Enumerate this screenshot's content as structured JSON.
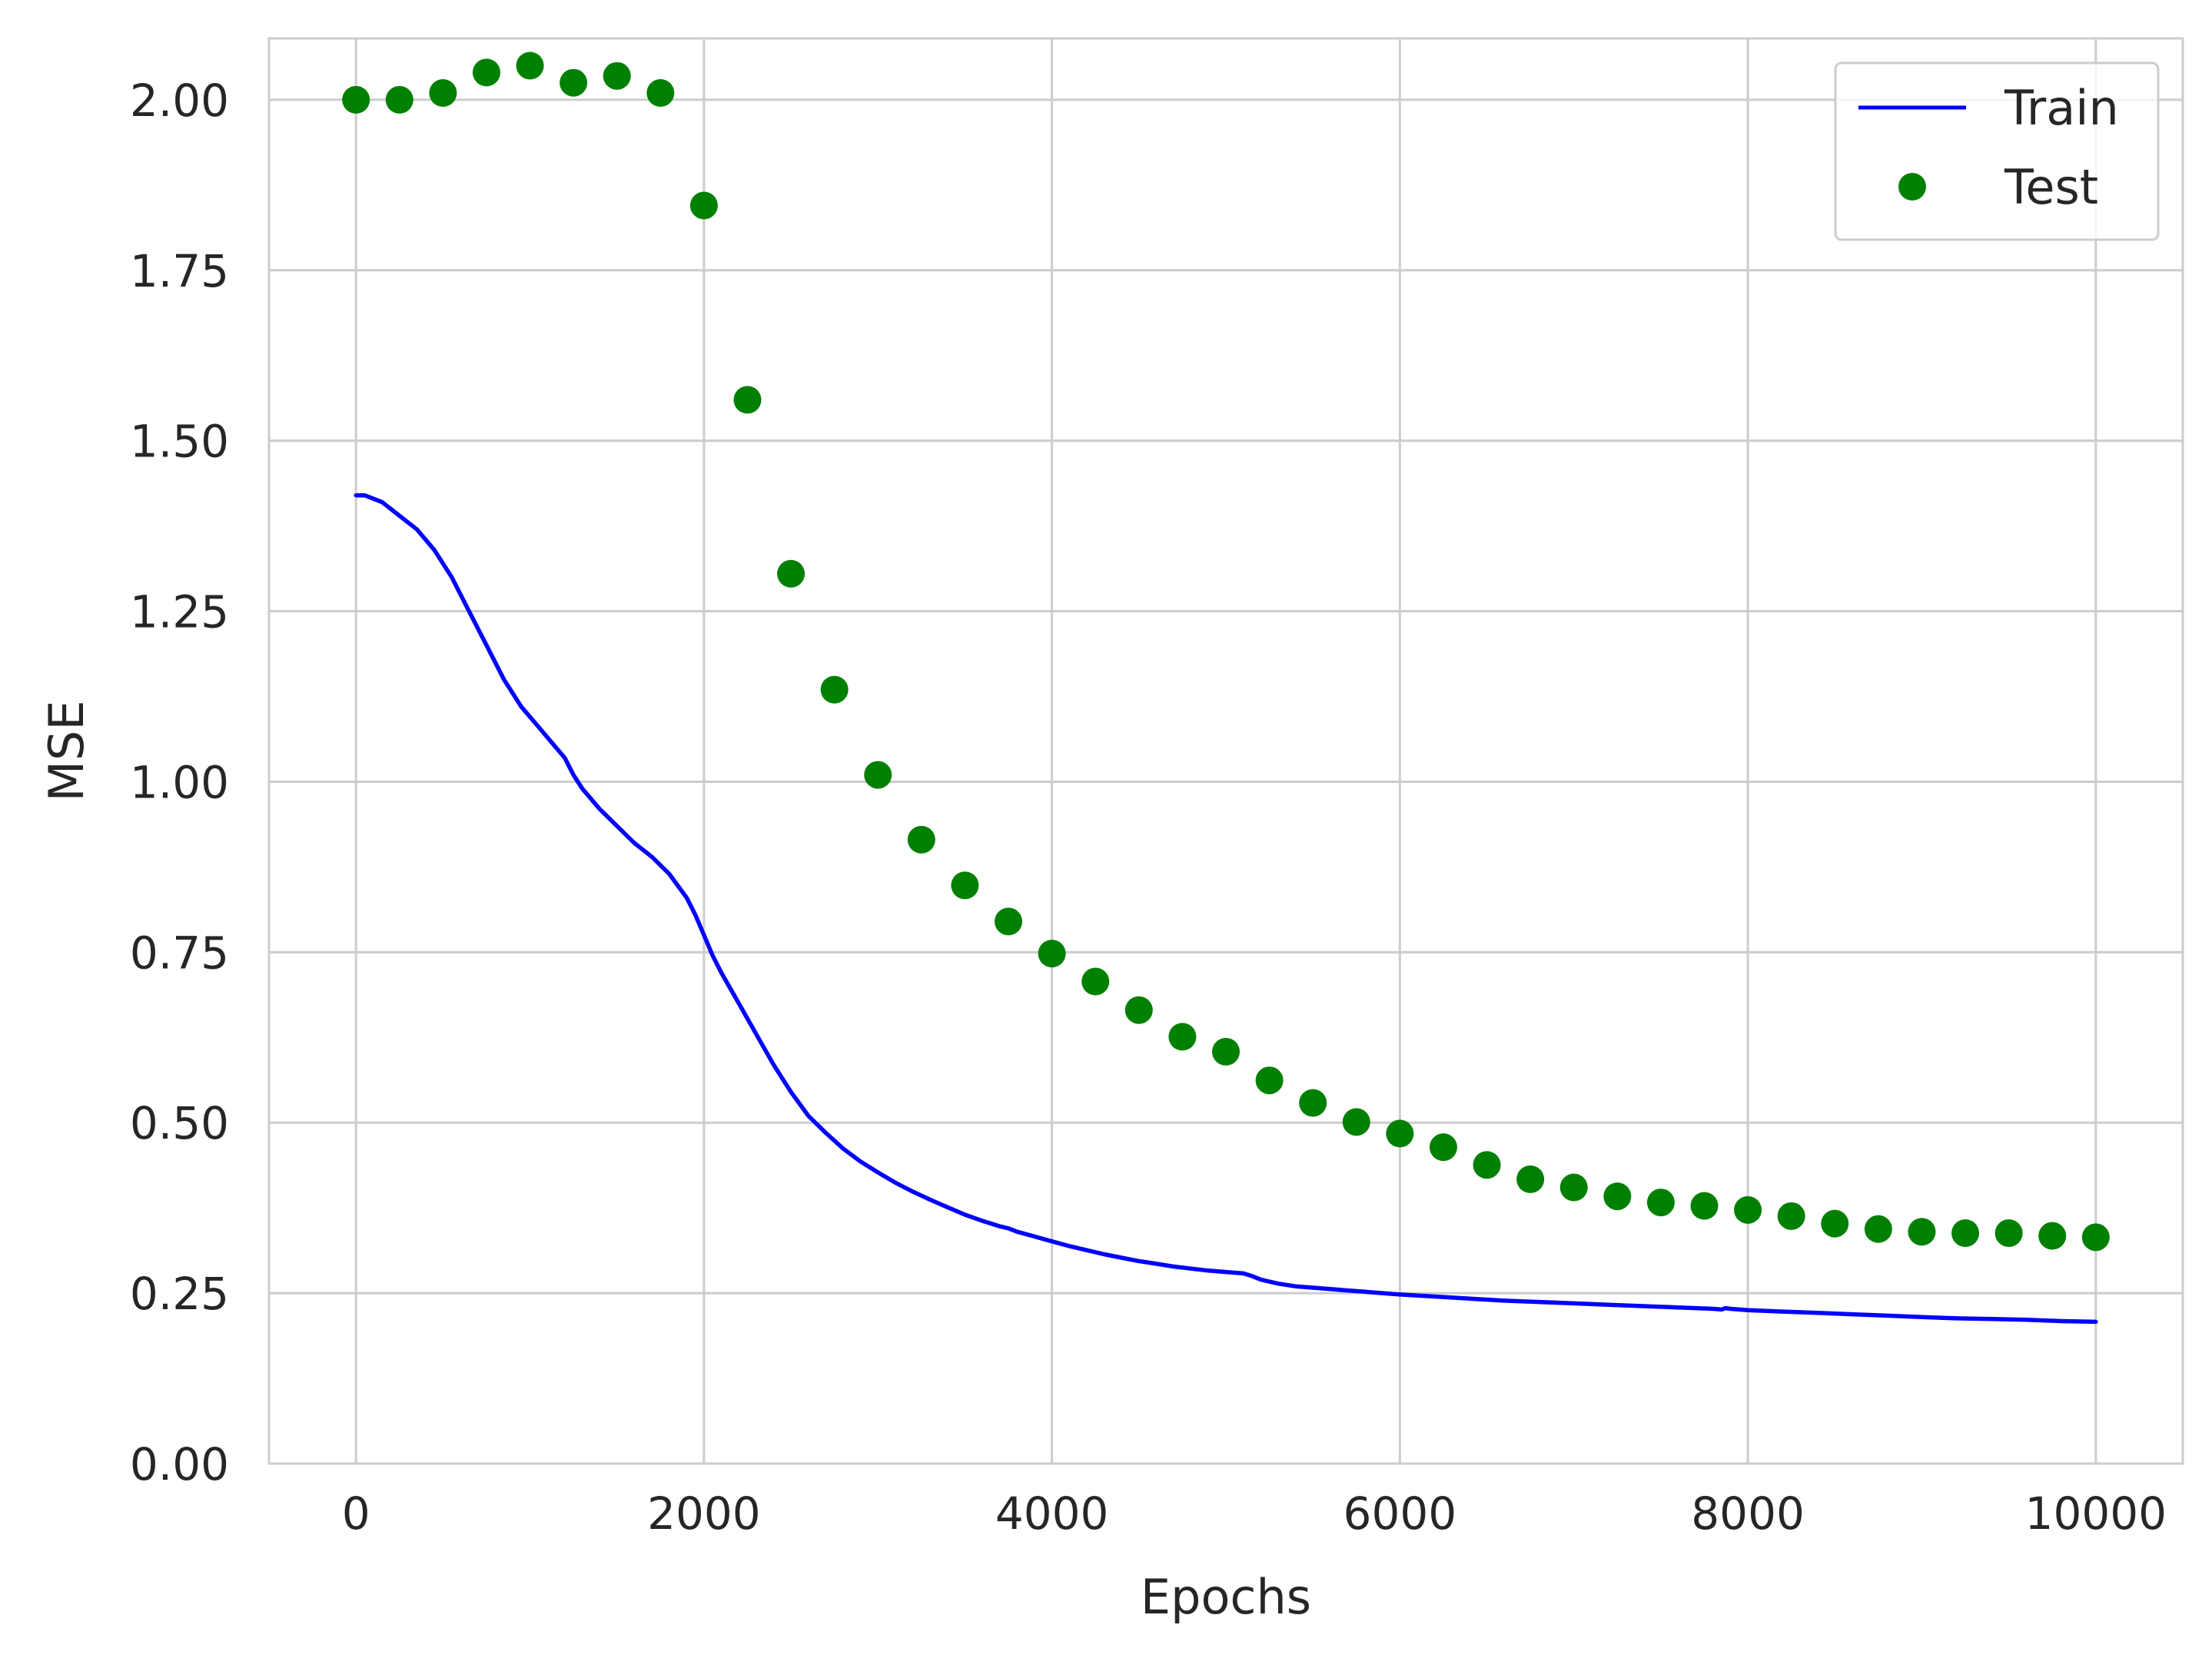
{
  "chart_data": {
    "type": "line",
    "xlabel": "Epochs",
    "ylabel": "MSE",
    "xlim": [
      -500,
      10500
    ],
    "ylim": [
      0,
      2.09
    ],
    "xticks": [
      0,
      2000,
      4000,
      6000,
      8000,
      10000
    ],
    "xtick_labels": [
      "0",
      "2000",
      "4000",
      "6000",
      "8000",
      "10000"
    ],
    "yticks": [
      0,
      0.25,
      0.5,
      0.75,
      1.0,
      1.25,
      1.5,
      1.75,
      2.0
    ],
    "ytick_labels": [
      "0.00",
      "0.25",
      "0.50",
      "0.75",
      "1.00",
      "1.25",
      "1.50",
      "1.75",
      "2.00"
    ],
    "grid": true,
    "legend_position": "top-right",
    "series": [
      {
        "name": "Train",
        "kind": "line",
        "color": "#0000ff",
        "x": [
          0,
          50,
          150,
          250,
          350,
          450,
          550,
          650,
          750,
          850,
          950,
          1050,
          1150,
          1200,
          1250,
          1300,
          1400,
          1500,
          1600,
          1700,
          1800,
          1900,
          1950,
          2000,
          2050,
          2100,
          2200,
          2300,
          2400,
          2500,
          2600,
          2700,
          2800,
          2900,
          3000,
          3100,
          3200,
          3300,
          3400,
          3500,
          3600,
          3700,
          3750,
          3800,
          3900,
          4000,
          4100,
          4200,
          4300,
          4400,
          4500,
          4600,
          4700,
          4800,
          4900,
          5000,
          5100,
          5150,
          5200,
          5300,
          5400,
          5500,
          5550,
          5600,
          5700,
          5800,
          5900,
          6000,
          6200,
          6400,
          6600,
          6800,
          7000,
          7200,
          7400,
          7600,
          7800,
          7850,
          7870,
          7900,
          8000,
          8200,
          8400,
          8600,
          8800,
          9000,
          9200,
          9400,
          9600,
          9800,
          10000
        ],
        "values": [
          1.42,
          1.42,
          1.41,
          1.39,
          1.37,
          1.34,
          1.3,
          1.25,
          1.2,
          1.15,
          1.11,
          1.08,
          1.05,
          1.035,
          1.01,
          0.99,
          0.96,
          0.935,
          0.91,
          0.89,
          0.865,
          0.83,
          0.805,
          0.775,
          0.745,
          0.72,
          0.675,
          0.63,
          0.585,
          0.545,
          0.51,
          0.485,
          0.462,
          0.443,
          0.427,
          0.412,
          0.399,
          0.387,
          0.376,
          0.365,
          0.356,
          0.348,
          0.345,
          0.34,
          0.333,
          0.326,
          0.319,
          0.313,
          0.307,
          0.302,
          0.297,
          0.293,
          0.289,
          0.286,
          0.283,
          0.281,
          0.279,
          0.275,
          0.27,
          0.264,
          0.26,
          0.258,
          0.257,
          0.256,
          0.254,
          0.252,
          0.25,
          0.248,
          0.245,
          0.242,
          0.239,
          0.237,
          0.235,
          0.233,
          0.231,
          0.229,
          0.227,
          0.226,
          0.228,
          0.227,
          0.225,
          0.223,
          0.221,
          0.219,
          0.217,
          0.215,
          0.213,
          0.212,
          0.211,
          0.209,
          0.208
        ]
      },
      {
        "name": "Test",
        "kind": "scatter",
        "color": "#008000",
        "x": [
          0,
          250,
          500,
          750,
          1000,
          1250,
          1500,
          1750,
          2000,
          2250,
          2500,
          2750,
          3000,
          3250,
          3500,
          3750,
          4000,
          4250,
          4500,
          4750,
          5000,
          5250,
          5500,
          5750,
          6000,
          6250,
          6500,
          6750,
          7000,
          7250,
          7500,
          7750,
          8000,
          8250,
          8500,
          8750,
          9000,
          9250,
          9500,
          9750,
          10000
        ],
        "values": [
          2.0,
          2.0,
          2.01,
          2.04,
          2.05,
          2.025,
          2.035,
          2.01,
          1.845,
          1.56,
          1.305,
          1.135,
          1.01,
          0.915,
          0.848,
          0.795,
          0.748,
          0.707,
          0.665,
          0.626,
          0.604,
          0.562,
          0.529,
          0.501,
          0.484,
          0.464,
          0.438,
          0.417,
          0.405,
          0.392,
          0.383,
          0.378,
          0.372,
          0.363,
          0.352,
          0.344,
          0.34,
          0.338,
          0.338,
          0.334,
          0.332
        ]
      }
    ]
  }
}
